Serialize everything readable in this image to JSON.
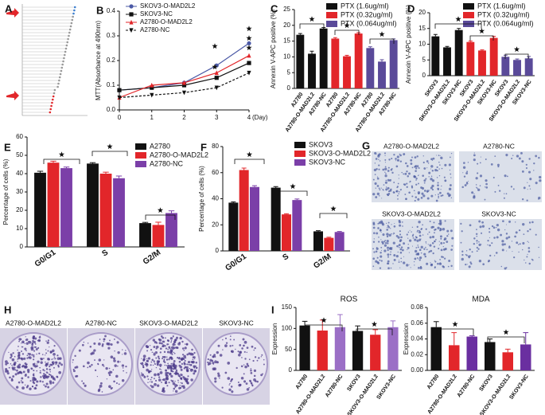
{
  "panel_labels": [
    "A",
    "B",
    "C",
    "D",
    "E",
    "F",
    "G",
    "H",
    "I"
  ],
  "chart_data": [
    {
      "type": "line",
      "ylabel": "MTT(Absorbance at 490nm)",
      "xlabel": "(Day)",
      "x": [
        0,
        1,
        2,
        3,
        4
      ],
      "xlim": [
        0,
        4
      ],
      "xticks": [
        0,
        1,
        2,
        3,
        4
      ],
      "ylim": [
        0,
        0.4
      ],
      "yticks": [
        {
          "value": 0,
          "label": "0.0"
        },
        0.1,
        0.2,
        0.3,
        0.4
      ],
      "series": [
        {
          "name": "SKOV3-O-MAD2L2",
          "color": "#4b59a6",
          "marker": "circle",
          "dash": false,
          "values": [
            0.08,
            0.09,
            0.11,
            0.18,
            0.27
          ]
        },
        {
          "name": "SKOV3-NC",
          "color": "#111111",
          "marker": "square",
          "dash": false,
          "values": [
            0.08,
            0.09,
            0.1,
            0.13,
            0.19
          ]
        },
        {
          "name": "A2780-O-MAD2L2",
          "color": "#e2262a",
          "marker": "triangle-up",
          "dash": false,
          "values": [
            0.05,
            0.1,
            0.11,
            0.15,
            0.22
          ]
        },
        {
          "name": "A2780-NC",
          "color": "#111111",
          "marker": "triangle-down",
          "dash": true,
          "values": [
            0.05,
            0.06,
            0.07,
            0.09,
            0.15
          ]
        }
      ]
    },
    {
      "type": "bar",
      "ylabel": "Annexin V-APC positive (%)",
      "categories": [
        "A2780",
        "A2780-O-MAD2L2",
        "A2780-NC",
        "A2780",
        "A2780-O-MAD2L2",
        "A2780-NC",
        "A2780",
        "A2780-O-MAD2L2",
        "A2780-NC"
      ],
      "ylim": [
        0,
        25
      ],
      "yticks": [
        0,
        5,
        10,
        15,
        20,
        25
      ],
      "series": [
        {
          "name": "PTX (1.6ug/ml)",
          "color": "#111111",
          "values": [
            17,
            11,
            19,
            null,
            null,
            null,
            null,
            null,
            null
          ],
          "errors": [
            0.4,
            0.8,
            0.3,
            null,
            null,
            null,
            null,
            null,
            null
          ]
        },
        {
          "name": "PTX (0.32ug/ml)",
          "color": "#e2262a",
          "values": [
            null,
            null,
            null,
            15.8,
            10.2,
            17.4,
            null,
            null,
            null
          ],
          "errors": [
            null,
            null,
            null,
            0.3,
            0.3,
            0.3,
            null,
            null,
            null
          ]
        },
        {
          "name": "PTX (0.064ug/ml)",
          "color": "#5a4a99",
          "values": [
            null,
            null,
            null,
            null,
            null,
            null,
            12.8,
            8.5,
            15.3
          ],
          "errors": [
            null,
            null,
            null,
            null,
            null,
            null,
            0.4,
            0.6,
            0.4
          ]
        }
      ]
    },
    {
      "type": "bar",
      "ylabel": "Annexin V-APC positive (%)",
      "categories": [
        "SKOV3",
        "SKOV3-O-MAD2L2",
        "SKOV3-NC",
        "SKOV3",
        "SKOV3-O-MAD2L2",
        "SKOV3-NC",
        "SKOV3",
        "SKOV3-O-MAD2L2",
        "SKOV3-NC"
      ],
      "ylim": [
        0,
        20
      ],
      "yticks": [
        0,
        5,
        10,
        15,
        20
      ],
      "series": [
        {
          "name": "PTX (1.6ug/ml)",
          "color": "#111111",
          "values": [
            12.5,
            9,
            14.5,
            null,
            null,
            null,
            null,
            null,
            null
          ],
          "errors": [
            0.6,
            0.3,
            0.5,
            null,
            null,
            null,
            null,
            null,
            null
          ]
        },
        {
          "name": "PTX (0.32ug/ml)",
          "color": "#e2262a",
          "values": [
            null,
            null,
            null,
            10.7,
            8,
            12,
            null,
            null,
            null
          ],
          "errors": [
            null,
            null,
            null,
            0.3,
            0.2,
            0.5,
            null,
            null,
            null
          ]
        },
        {
          "name": "PTX (0.064ug/ml)",
          "color": "#5a4a99",
          "values": [
            null,
            null,
            null,
            null,
            null,
            null,
            6,
            5,
            5.5
          ],
          "errors": [
            null,
            null,
            null,
            null,
            null,
            null,
            0.5,
            0.3,
            0.6
          ]
        }
      ]
    },
    {
      "type": "bar",
      "ylabel": "Percentage of cells (%)",
      "categories": [
        "G0/G1",
        "S",
        "G2/M"
      ],
      "ylim": [
        0,
        60
      ],
      "yticks": [
        0,
        10,
        20,
        30,
        40,
        50,
        60
      ],
      "series": [
        {
          "name": "A2780",
          "color": "#111111",
          "values": [
            40.5,
            45.5,
            13
          ],
          "errors": [
            0.8,
            0.5,
            0.4
          ]
        },
        {
          "name": "A2780-O-MAD2L2",
          "color": "#e2262a",
          "values": [
            46,
            40,
            12
          ],
          "errors": [
            0.8,
            0.8,
            1.5
          ]
        },
        {
          "name": "A2780-NC",
          "color": "#7b3fa8",
          "values": [
            43,
            37.5,
            18.5
          ],
          "errors": [
            0.6,
            1.2,
            1.2
          ]
        }
      ]
    },
    {
      "type": "bar",
      "ylabel": "Percentage of cells (%)",
      "categories": [
        "G0/G1",
        "S",
        "G2/M"
      ],
      "ylim": [
        0,
        80
      ],
      "yticks": [
        0,
        20,
        40,
        60,
        80
      ],
      "series": [
        {
          "name": "SKOV3",
          "color": "#111111",
          "values": [
            37,
            48.5,
            15
          ],
          "errors": [
            0.6,
            0.8,
            0.5
          ]
        },
        {
          "name": "SKOV3-O-MAD2L2",
          "color": "#e2262a",
          "values": [
            62,
            28,
            10
          ],
          "errors": [
            1.5,
            0.5,
            0.5
          ]
        },
        {
          "name": "SKOV3-NC",
          "color": "#7b3fa8",
          "values": [
            49,
            39,
            14.5
          ],
          "errors": [
            1,
            0.8,
            0.4
          ]
        }
      ]
    },
    {
      "type": "bar",
      "title": "ROS",
      "ylabel": "Expression",
      "categories": [
        "A2780",
        "A2780-O-MAD2L2",
        "A2780-NC",
        "SKOV3",
        "SKOV3-O-MAD2L2",
        "SKOV3-NC"
      ],
      "ylim": [
        0,
        150
      ],
      "yticks": [
        0,
        50,
        100,
        150
      ],
      "values": [
        107,
        95,
        103,
        94,
        85,
        103
      ],
      "errors": [
        10,
        25,
        30,
        12,
        12,
        15
      ],
      "colors": [
        "#111111",
        "#e2262a",
        "#9b6fc6",
        "#111111",
        "#e2262a",
        "#9b6fc6"
      ]
    },
    {
      "type": "bar",
      "title": "MDA",
      "ylabel": "Expression",
      "categories": [
        "A2780",
        "A2780-O-MAD2L2",
        "A2780-NC",
        "SKOV3",
        "SKOV3-O-MAD2L2",
        "SKOV3-NC"
      ],
      "ylim": [
        0,
        0.08
      ],
      "yticks": [
        {
          "value": 0,
          "label": "0.00"
        },
        0.02,
        0.04,
        0.06,
        0.08
      ],
      "values": [
        0.055,
        0.032,
        0.043,
        0.036,
        0.023,
        0.033
      ],
      "errors": [
        0.007,
        0.016,
        0.001,
        0.004,
        0.004,
        0.015
      ],
      "colors": [
        "#111111",
        "#e2262a",
        "#6a2fa0",
        "#111111",
        "#e2262a",
        "#6a2fa0"
      ]
    }
  ],
  "colony_images": {
    "labels": [
      "A2780-O-MAD2L2",
      "A2780-NC",
      "SKOV3-O-MAD2L2",
      "SKOV3-NC"
    ]
  },
  "invasion_images": {
    "labels": [
      "A2780-O-MAD2L2",
      "A2780-NC",
      "SKOV3-O-MAD2L2",
      "SKOV3-NC"
    ]
  }
}
